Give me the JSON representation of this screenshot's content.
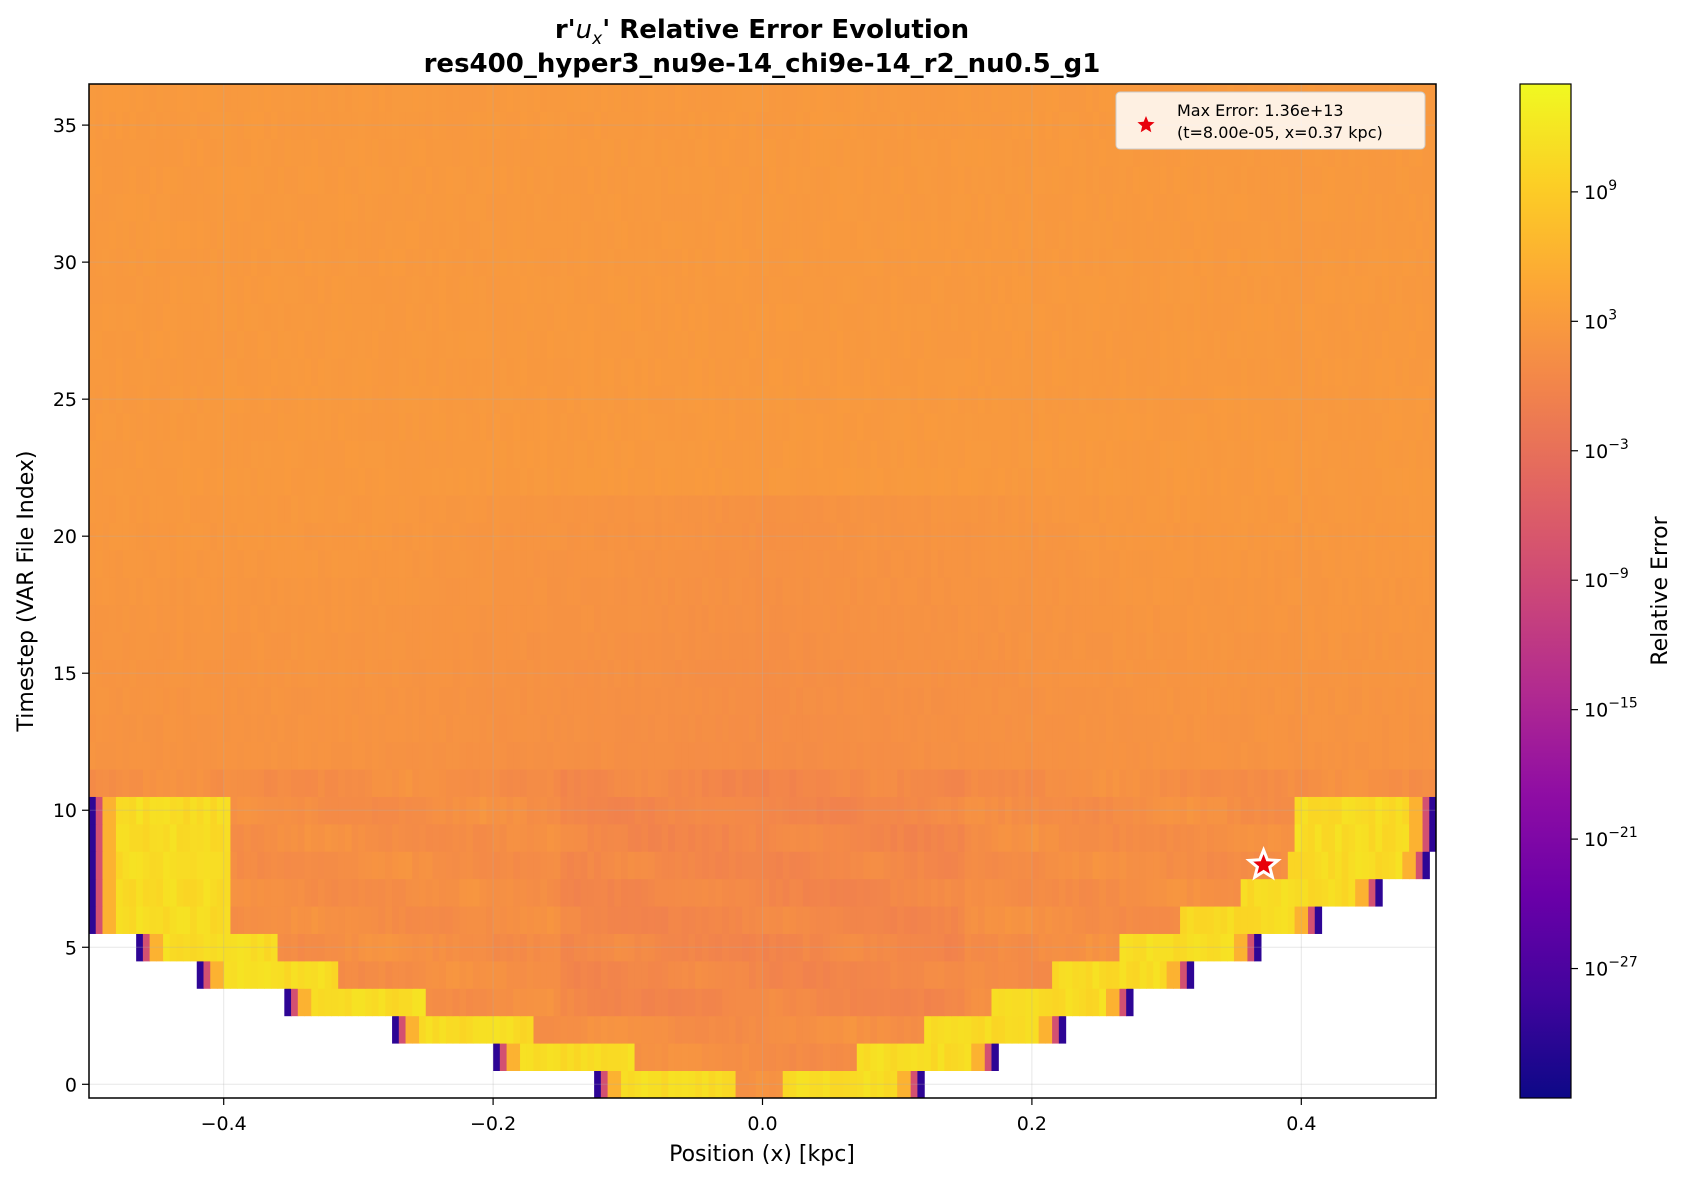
{
  "chart_data": {
    "type": "heatmap",
    "title_line1_prefix": "r'",
    "title_line1_var": "u",
    "title_line1_sub": "x",
    "title_line1_suffix": "' Relative Error Evolution",
    "title_line2": "res400_hyper3_nu9e-14_chi9e-14_r2_nu0.5_g1",
    "xlabel": "Position (x) [kpc]",
    "ylabel": "Timestep (VAR File Index)",
    "xlim": [
      -0.5,
      0.5
    ],
    "ylim": [
      -0.5,
      36.5
    ],
    "x_ticks": [
      -0.4,
      -0.2,
      0.0,
      0.2,
      0.4
    ],
    "x_tick_labels": [
      "−0.4",
      "−0.2",
      "0.0",
      "0.2",
      "0.4"
    ],
    "y_ticks": [
      0,
      5,
      10,
      15,
      20,
      25,
      30,
      35
    ],
    "y_tick_labels": [
      "0",
      "5",
      "10",
      "15",
      "20",
      "25",
      "30",
      "35"
    ],
    "grid": true,
    "rows": [
      {
        "t": 0,
        "left": -0.125,
        "right": 0.12,
        "side_error_log": 13,
        "center_error_log": 2.5
      },
      {
        "t": 1,
        "left": -0.2,
        "right": 0.175,
        "side_error_log": 13,
        "center_error_log": 2.5
      },
      {
        "t": 2,
        "left": -0.275,
        "right": 0.225,
        "side_error_log": 13,
        "center_error_log": 2.5
      },
      {
        "t": 3,
        "left": -0.355,
        "right": 0.275,
        "side_error_log": 13,
        "center_error_log": 2.5
      },
      {
        "t": 4,
        "left": -0.42,
        "right": 0.32,
        "side_error_log": 13,
        "center_error_log": 2.5
      },
      {
        "t": 5,
        "left": -0.465,
        "right": 0.37,
        "side_error_log": 13,
        "center_error_log": 2.5
      },
      {
        "t": 6,
        "left": -0.5,
        "right": 0.415,
        "side_error_log": 13,
        "center_error_log": 2.5
      },
      {
        "t": 7,
        "left": -0.5,
        "right": 0.462,
        "side_error_log": 13,
        "center_error_log": 2.5
      },
      {
        "t": 8,
        "left": -0.5,
        "right": 0.497,
        "side_error_log": 13,
        "center_error_log": 2.5
      },
      {
        "t": 9,
        "left": -0.5,
        "right": 0.5,
        "side_error_log": 13,
        "center_error_log": 2.5
      },
      {
        "t": 10,
        "left": -0.5,
        "right": 0.5,
        "side_error_log": 13,
        "center_error_log": 2.5
      },
      {
        "t": 11,
        "left": -0.5,
        "right": 0.5,
        "side_error_log": 2.5,
        "center_error_log": 2.5
      }
    ],
    "uniform_rows": {
      "from": 12,
      "to": 36,
      "error_log": 3
    },
    "max_error": {
      "t": 8.0,
      "x": 0.372,
      "legend_line1": "Max Error: 1.36e+13",
      "legend_line2": "(t=8.00e-05, x=0.37 kpc)",
      "marker": "star-icon",
      "color": "#e8000b"
    },
    "colorbar": {
      "label": "Relative Error",
      "cmap": "plasma",
      "scale": "log",
      "log_min": -33,
      "log_max": 14,
      "ticks_exp": [
        -27,
        -21,
        -15,
        -9,
        -3,
        3,
        9
      ],
      "tick_base": "10",
      "tick_exponents": [
        "−27",
        "−21",
        "−15",
        "−9",
        "−3",
        "3",
        "9"
      ]
    }
  }
}
